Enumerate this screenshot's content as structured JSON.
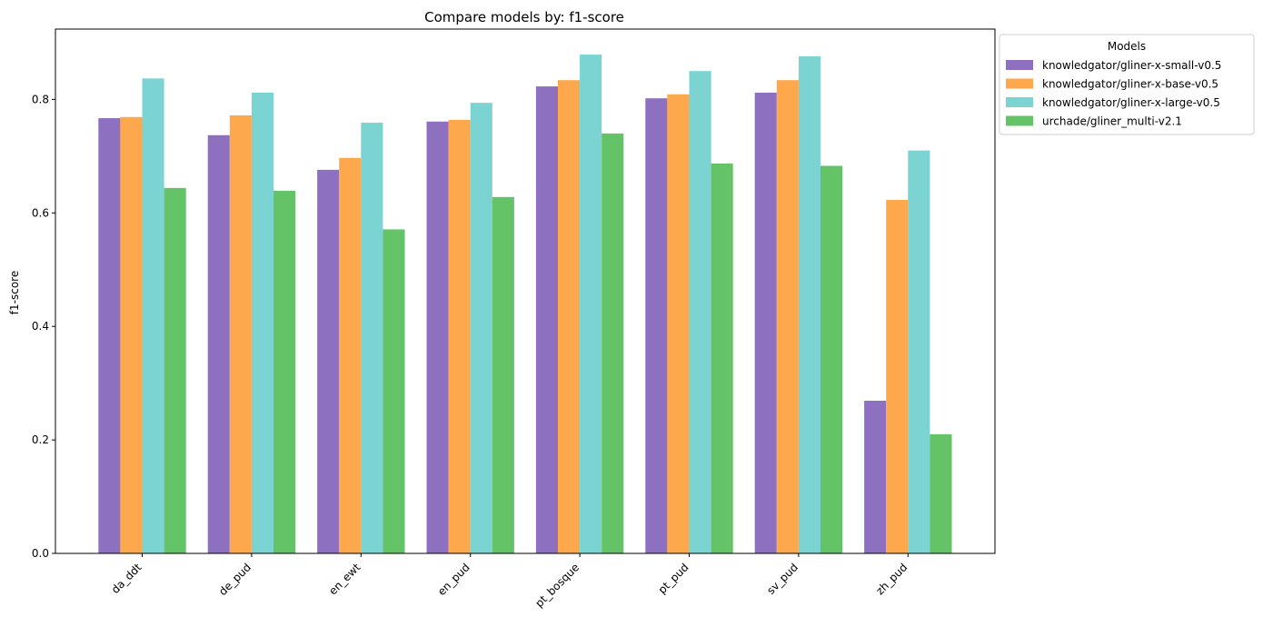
{
  "chart_data": {
    "type": "bar",
    "title": "Compare models by: f1-score",
    "xlabel": "",
    "ylabel": "f1-score",
    "ylim": [
      0,
      0.924
    ],
    "yticks": [
      0.0,
      0.2,
      0.4,
      0.6,
      0.8
    ],
    "ytick_labels": [
      "0.0",
      "0.2",
      "0.4",
      "0.6",
      "0.8"
    ],
    "categories": [
      "da_ddt",
      "de_pud",
      "en_ewt",
      "en_pud",
      "pt_bosque",
      "pt_pud",
      "sv_pud",
      "zh_pud"
    ],
    "legend": {
      "title": "Models",
      "placement": "outside-upper-right"
    },
    "grid": false,
    "series": [
      {
        "name": "knowledgator/gliner-x-small-v0.5",
        "color": "#8e70c0",
        "values": [
          0.767,
          0.737,
          0.676,
          0.761,
          0.823,
          0.802,
          0.812,
          0.269
        ]
      },
      {
        "name": "knowledgator/gliner-x-base-v0.5",
        "color": "#fda84c",
        "values": [
          0.769,
          0.772,
          0.697,
          0.764,
          0.834,
          0.809,
          0.834,
          0.623
        ]
      },
      {
        "name": "knowledgator/gliner-x-large-v0.5",
        "color": "#7bd3d2",
        "values": [
          0.837,
          0.812,
          0.759,
          0.794,
          0.879,
          0.85,
          0.876,
          0.71
        ]
      },
      {
        "name": "urchade/gliner_multi-v2.1",
        "color": "#64c367",
        "values": [
          0.644,
          0.639,
          0.571,
          0.628,
          0.74,
          0.687,
          0.683,
          0.21
        ]
      }
    ]
  }
}
